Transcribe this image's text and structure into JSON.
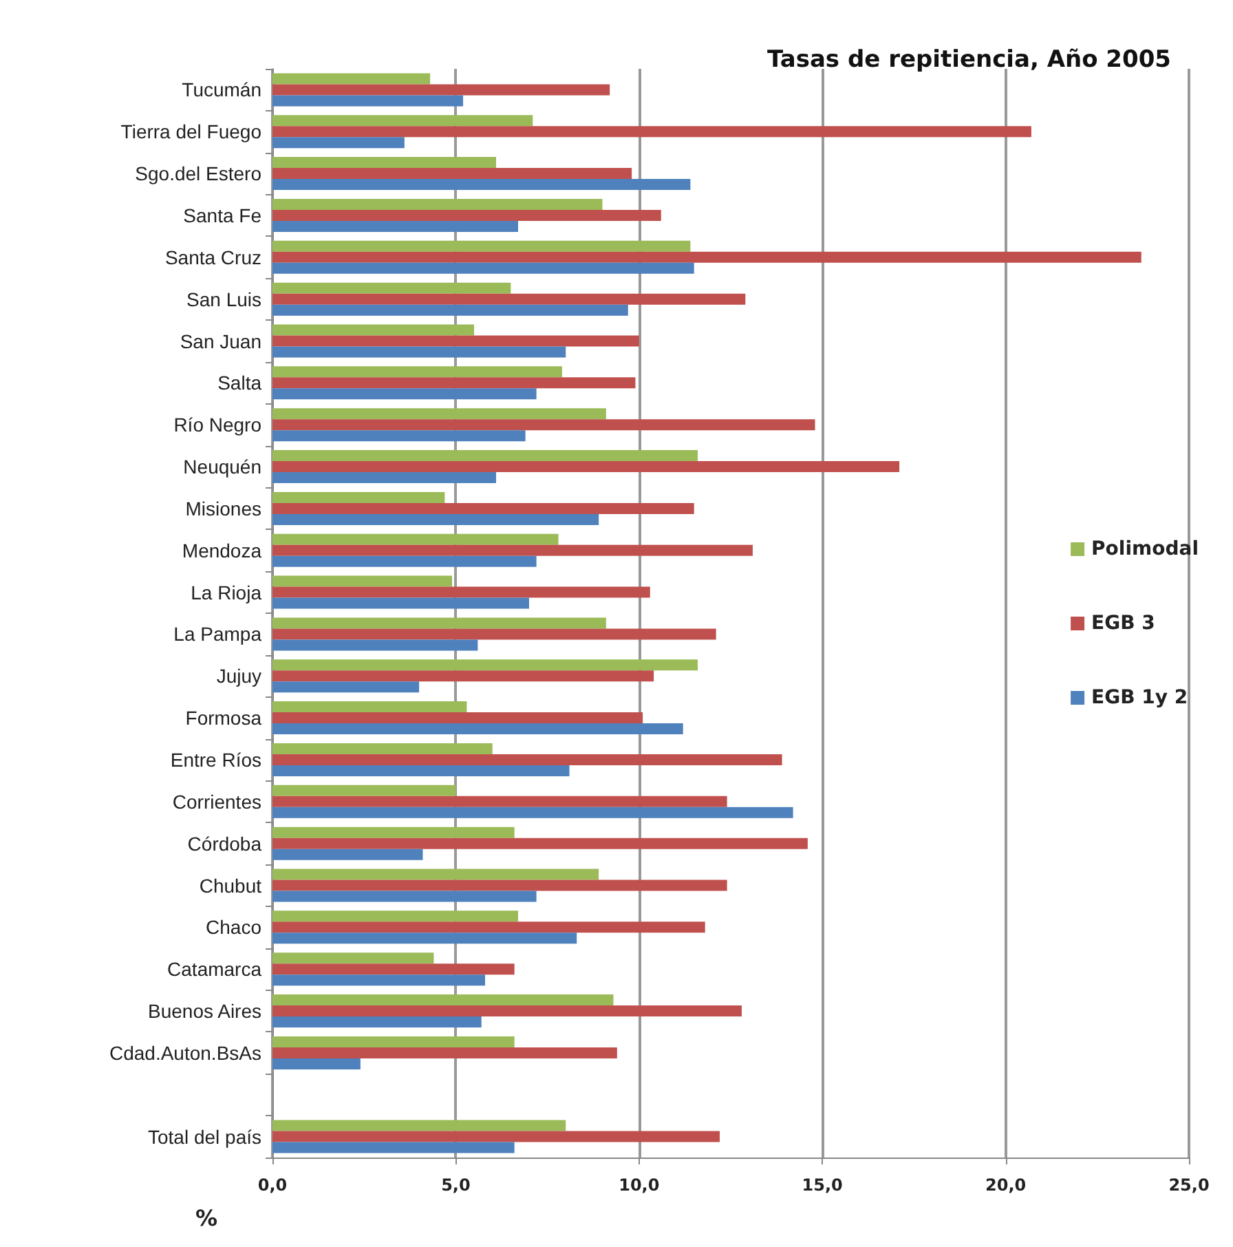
{
  "chart_data": {
    "type": "bar",
    "orientation": "horizontal",
    "title": "Tasas de repitiencia, Año 2005",
    "xlabel": "%",
    "categories": [
      "Tucumán",
      "Tierra del Fuego",
      "Sgo.del Estero",
      "Santa Fe",
      "Santa Cruz",
      "San Luis",
      "San Juan",
      "Salta",
      "Río Negro",
      "Neuquén",
      "Misiones",
      "Mendoza",
      "La Rioja",
      "La Pampa",
      "Jujuy",
      "Formosa",
      "Entre Ríos",
      "Corrientes",
      "Córdoba",
      "Chubut",
      "Chaco",
      "Catamarca",
      "Buenos Aires",
      "Cdad.Auton.BsAs",
      null,
      "Total del país"
    ],
    "series": [
      {
        "name": "Polimodal",
        "color": "#9bbb59",
        "values": [
          4.3,
          7.1,
          6.1,
          9.0,
          11.4,
          6.5,
          5.5,
          7.9,
          9.1,
          11.6,
          4.7,
          7.8,
          4.9,
          9.1,
          11.6,
          5.3,
          6.0,
          5.0,
          6.6,
          8.9,
          6.7,
          4.4,
          9.3,
          6.6,
          null,
          8.0
        ]
      },
      {
        "name": "EGB 3",
        "color": "#c0504d",
        "values": [
          9.2,
          20.7,
          9.8,
          10.6,
          23.7,
          12.9,
          10.0,
          9.9,
          14.8,
          17.1,
          11.5,
          13.1,
          10.3,
          12.1,
          10.4,
          10.1,
          13.9,
          12.4,
          14.6,
          12.4,
          11.8,
          6.6,
          12.8,
          9.4,
          null,
          12.2
        ]
      },
      {
        "name": "EGB 1y 2",
        "color": "#4f81bd",
        "values": [
          5.2,
          3.6,
          11.4,
          6.7,
          11.5,
          9.7,
          8.0,
          7.2,
          6.9,
          6.1,
          8.9,
          7.2,
          7.0,
          5.6,
          4.0,
          11.2,
          8.1,
          14.2,
          4.1,
          7.2,
          8.3,
          5.8,
          5.7,
          2.4,
          null,
          6.6
        ]
      }
    ],
    "xlim": [
      0,
      25
    ],
    "xticks": [
      {
        "value": 0,
        "label": "0,0"
      },
      {
        "value": 5,
        "label": "5,0"
      },
      {
        "value": 10,
        "label": "10,0"
      },
      {
        "value": 15,
        "label": "15,0"
      },
      {
        "value": 20,
        "label": "20,0"
      },
      {
        "value": 25,
        "label": "25,0"
      }
    ],
    "grid": "x",
    "legend": "right"
  }
}
